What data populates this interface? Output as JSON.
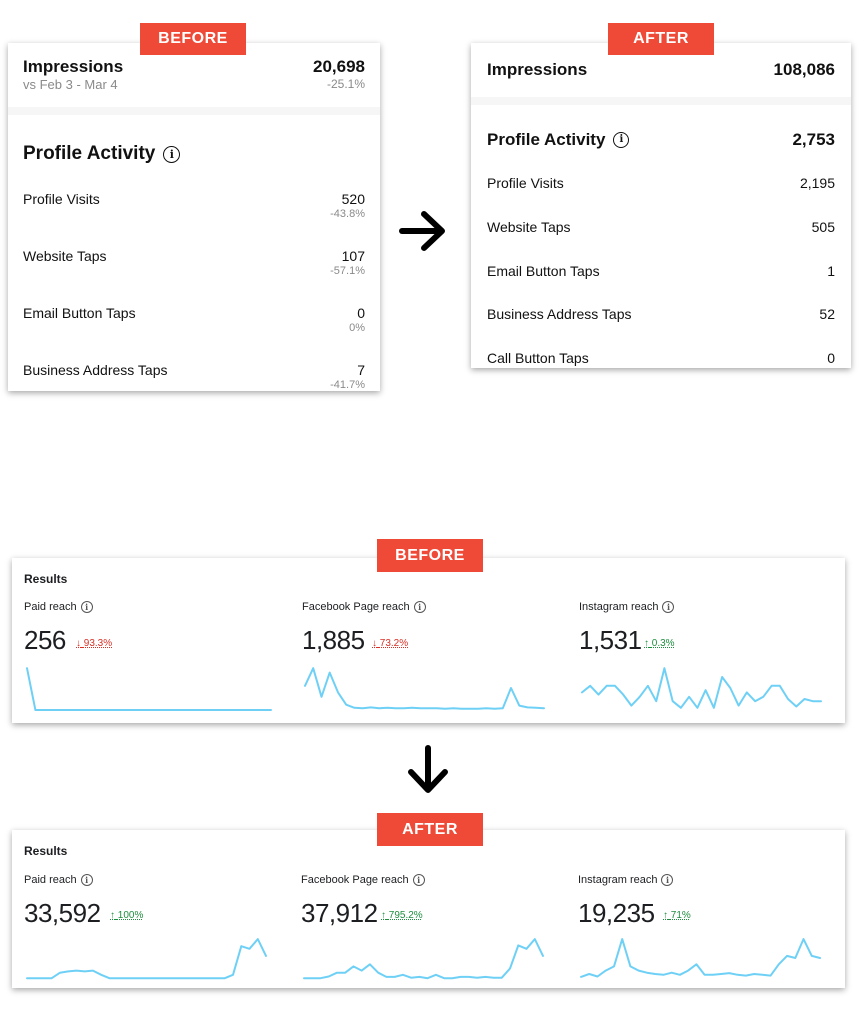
{
  "tags": {
    "before": "BEFORE",
    "after": "AFTER"
  },
  "instagram_before": {
    "impressions": {
      "label": "Impressions",
      "date_range": "vs Feb 3 - Mar 4",
      "value": "20,698",
      "change": "-25.1%"
    },
    "profile_activity": {
      "label": "Profile Activity",
      "info_icon": "i"
    },
    "rows": [
      {
        "label": "Profile Visits",
        "value": "520",
        "change": "-43.8%"
      },
      {
        "label": "Website Taps",
        "value": "107",
        "change": "-57.1%"
      },
      {
        "label": "Email Button Taps",
        "value": "0",
        "change": "0%"
      },
      {
        "label": "Business Address Taps",
        "value": "7",
        "change": "-41.7%"
      }
    ]
  },
  "instagram_after": {
    "impressions": {
      "label": "Impressions",
      "value": "108,086"
    },
    "profile_activity": {
      "label": "Profile Activity",
      "info_icon": "i",
      "value": "2,753"
    },
    "rows": [
      {
        "label": "Profile Visits",
        "value": "2,195"
      },
      {
        "label": "Website Taps",
        "value": "505"
      },
      {
        "label": "Email Button Taps",
        "value": "1"
      },
      {
        "label": "Business Address Taps",
        "value": "52"
      },
      {
        "label": "Call Button Taps",
        "value": "0"
      }
    ]
  },
  "facebook_before": {
    "title": "Results",
    "metrics": [
      {
        "label": "Paid reach",
        "info_icon": "i",
        "value": "256",
        "delta": "93.3%",
        "direction": "down",
        "arrow": "↓",
        "spark": [
          0.95,
          0.0,
          0.0,
          0.0,
          0.0,
          0.0,
          0.0,
          0.0,
          0.0,
          0.0,
          0.0,
          0.0,
          0.0,
          0.0,
          0.0,
          0.0,
          0.0,
          0.0,
          0.0,
          0.0,
          0.0,
          0.0,
          0.0,
          0.0,
          0.0,
          0.0,
          0.0,
          0.0,
          0.0,
          0.0
        ]
      },
      {
        "label": "Facebook Page reach",
        "info_icon": "i",
        "value": "1,885",
        "delta": "73.2%",
        "direction": "down",
        "arrow": "↓",
        "spark": [
          0.55,
          0.95,
          0.3,
          0.85,
          0.4,
          0.12,
          0.05,
          0.04,
          0.06,
          0.04,
          0.05,
          0.04,
          0.04,
          0.05,
          0.04,
          0.04,
          0.04,
          0.03,
          0.04,
          0.03,
          0.03,
          0.03,
          0.04,
          0.03,
          0.04,
          0.5,
          0.1,
          0.06,
          0.05,
          0.04
        ]
      },
      {
        "label": "Instagram reach",
        "info_icon": "i",
        "value": "1,531",
        "delta": "0.3%",
        "direction": "up",
        "arrow": "↑",
        "spark": [
          0.4,
          0.55,
          0.35,
          0.55,
          0.55,
          0.35,
          0.1,
          0.3,
          0.55,
          0.2,
          0.95,
          0.2,
          0.05,
          0.3,
          0.05,
          0.45,
          0.05,
          0.75,
          0.5,
          0.1,
          0.4,
          0.2,
          0.3,
          0.55,
          0.55,
          0.25,
          0.08,
          0.25,
          0.2,
          0.2
        ]
      }
    ]
  },
  "facebook_after": {
    "title": "Results",
    "metrics": [
      {
        "label": "Paid reach",
        "info_icon": "i",
        "value": "33,592",
        "delta": "100%",
        "direction": "up",
        "arrow": "↑",
        "spark": [
          0.02,
          0.02,
          0.02,
          0.02,
          0.15,
          0.18,
          0.2,
          0.18,
          0.2,
          0.1,
          0.02,
          0.02,
          0.02,
          0.02,
          0.02,
          0.02,
          0.02,
          0.02,
          0.02,
          0.02,
          0.02,
          0.02,
          0.02,
          0.02,
          0.02,
          0.1,
          0.78,
          0.72,
          0.95,
          0.55
        ]
      },
      {
        "label": "Facebook Page reach",
        "info_icon": "i",
        "value": "37,912",
        "delta": "795.2%",
        "direction": "up",
        "arrow": "↑",
        "spark": [
          0.02,
          0.02,
          0.02,
          0.06,
          0.15,
          0.15,
          0.3,
          0.2,
          0.35,
          0.15,
          0.05,
          0.05,
          0.1,
          0.03,
          0.05,
          0.02,
          0.1,
          0.02,
          0.02,
          0.05,
          0.05,
          0.03,
          0.05,
          0.03,
          0.03,
          0.25,
          0.8,
          0.72,
          0.95,
          0.55
        ]
      },
      {
        "label": "Instagram reach",
        "info_icon": "i",
        "value": "19,235",
        "delta": "71%",
        "direction": "up",
        "arrow": "↑",
        "spark": [
          0.05,
          0.12,
          0.06,
          0.2,
          0.3,
          0.95,
          0.3,
          0.2,
          0.15,
          0.12,
          0.1,
          0.15,
          0.1,
          0.2,
          0.35,
          0.1,
          0.1,
          0.12,
          0.14,
          0.1,
          0.08,
          0.12,
          0.1,
          0.08,
          0.35,
          0.55,
          0.5,
          0.95,
          0.55,
          0.5
        ]
      }
    ]
  }
}
